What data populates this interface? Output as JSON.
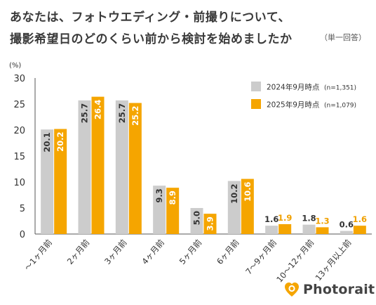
{
  "title_lines": [
    "あなたは、フォトウエディング・前撮りについて、",
    "撮影希望日のどのくらい前から検討を始めましたか"
  ],
  "note": "（単一回答）",
  "brand": {
    "name": "Photorait"
  },
  "colors": {
    "series_2024": "#cccccc",
    "series_2025": "#f5a500",
    "axis": "#555555",
    "text": "#333333",
    "label_2025_out": "#f0a000"
  },
  "chart_data": {
    "type": "bar",
    "unit_label": "(%)",
    "categories": [
      "～1ヶ月前",
      "2ヶ月前",
      "3ヶ月前",
      "4ヶ月前",
      "5ヶ月前",
      "6ヶ月前",
      "7～9ヶ月前",
      "10～12ヶ月前",
      "13ヶ月以上前"
    ],
    "series": [
      {
        "name": "2024年9月時点",
        "n": "(n=1,351)",
        "values": [
          20.1,
          25.7,
          25.7,
          9.3,
          5.0,
          10.2,
          1.6,
          1.8,
          0.6
        ]
      },
      {
        "name": "2025年9月時点",
        "n": "(n=1,079)",
        "values": [
          20.2,
          26.4,
          25.2,
          8.9,
          3.9,
          10.6,
          1.9,
          1.3,
          1.6
        ]
      }
    ],
    "ylim": [
      0,
      30
    ],
    "yticks": [
      0,
      5,
      10,
      15,
      20,
      25,
      30
    ],
    "legend_position": "top-right",
    "grid": false
  }
}
